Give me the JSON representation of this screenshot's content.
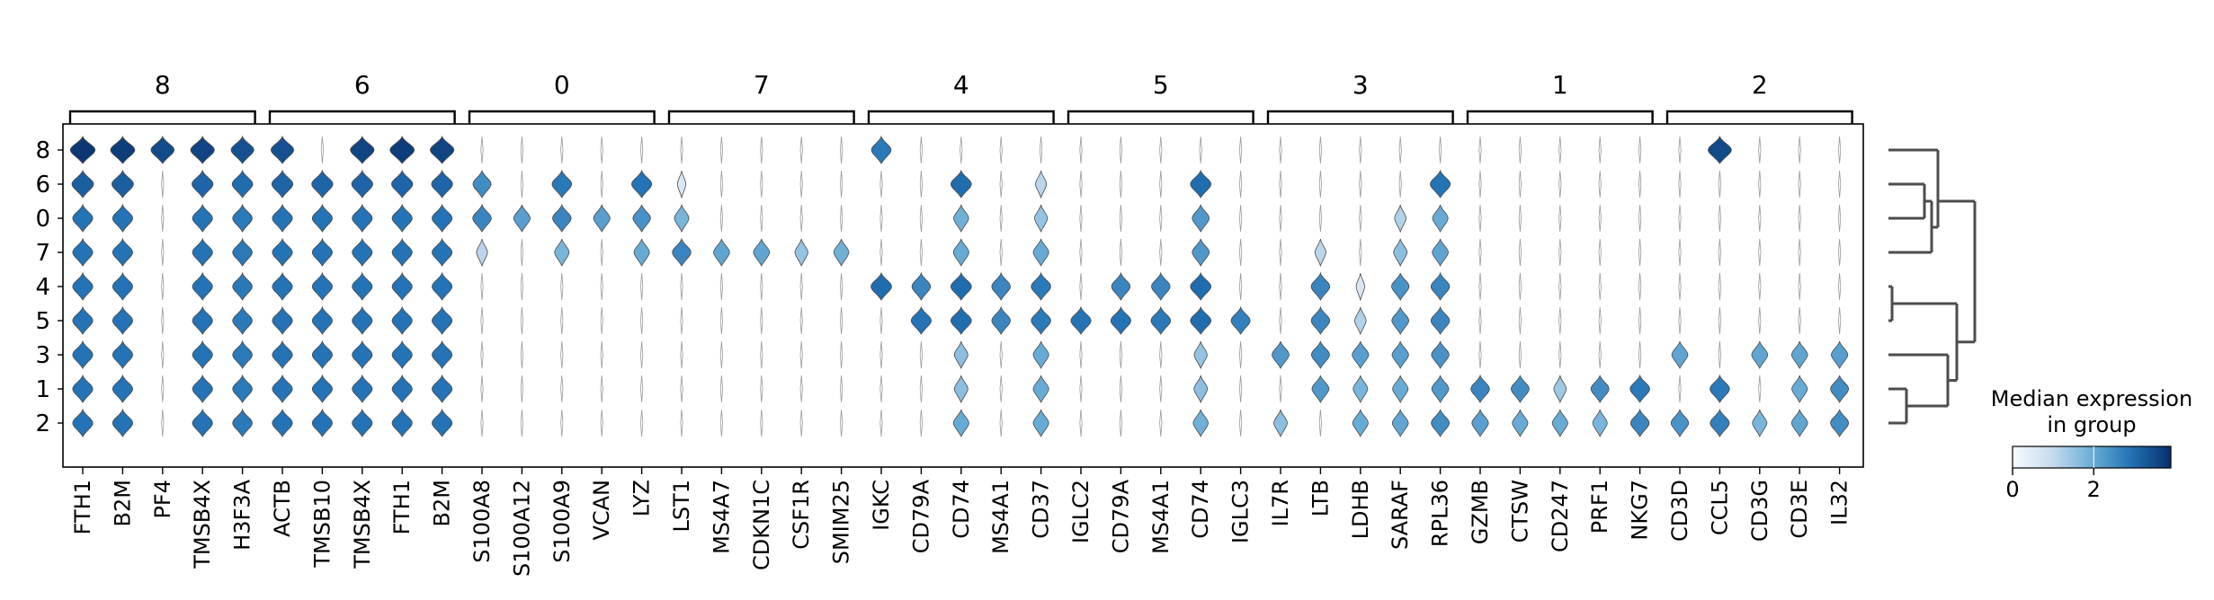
{
  "chart_data": {
    "type": "stacked-violin",
    "title": "",
    "xlabel": "",
    "ylabel": "",
    "cluster_rows": [
      "8",
      "6",
      "0",
      "7",
      "4",
      "5",
      "3",
      "1",
      "2"
    ],
    "gene_groups": [
      {
        "label": "8",
        "genes": [
          "FTH1",
          "B2M",
          "PF4",
          "TMSB4X",
          "H3F3A"
        ]
      },
      {
        "label": "6",
        "genes": [
          "ACTB",
          "TMSB10",
          "TMSB4X",
          "FTH1",
          "B2M"
        ]
      },
      {
        "label": "0",
        "genes": [
          "S100A8",
          "S100A12",
          "S100A9",
          "VCAN",
          "LYZ"
        ]
      },
      {
        "label": "7",
        "genes": [
          "LST1",
          "MS4A7",
          "CDKN1C",
          "CSF1R",
          "SMIM25"
        ]
      },
      {
        "label": "4",
        "genes": [
          "IGKC",
          "CD79A",
          "CD74",
          "MS4A1",
          "CD37"
        ]
      },
      {
        "label": "5",
        "genes": [
          "IGLC2",
          "CD79A",
          "MS4A1",
          "CD74",
          "IGLC3"
        ]
      },
      {
        "label": "3",
        "genes": [
          "IL7R",
          "LTB",
          "LDHB",
          "SARAF",
          "RPL36"
        ]
      },
      {
        "label": "1",
        "genes": [
          "GZMB",
          "CTSW",
          "CD247",
          "PRF1",
          "NKG7"
        ]
      },
      {
        "label": "2",
        "genes": [
          "CD3D",
          "CCL5",
          "CD3G",
          "CD3E",
          "IL32"
        ]
      }
    ],
    "median_expression": [
      [
        3.8,
        3.7,
        3.5,
        3.6,
        3.4,
        3.4,
        0.0,
        3.6,
        3.7,
        3.6,
        0.0,
        0.0,
        0.0,
        0.0,
        0.0,
        0.0,
        0.0,
        0.0,
        0.0,
        0.0,
        2.8,
        0.0,
        0.0,
        0.0,
        0.0,
        0.0,
        0.0,
        0.0,
        0.0,
        0.0,
        0.0,
        0.0,
        0.0,
        0.0,
        0.0,
        0.0,
        0.0,
        0.0,
        0.0,
        0.0,
        0.0,
        3.5,
        0.0,
        0.0,
        0.0
      ],
      [
        3.2,
        3.2,
        0.0,
        3.1,
        3.0,
        3.1,
        3.1,
        3.1,
        3.1,
        3.1,
        2.5,
        0.0,
        2.8,
        0.0,
        2.9,
        0.6,
        0.0,
        0.0,
        0.0,
        0.0,
        0.0,
        0.0,
        3.0,
        0.0,
        1.1,
        0.0,
        0.0,
        0.0,
        3.0,
        0.0,
        0.0,
        0.0,
        0.0,
        0.0,
        2.9,
        0.0,
        0.0,
        0.0,
        0.0,
        0.0,
        0.0,
        0.0,
        0.0,
        0.0,
        0.0
      ],
      [
        2.9,
        2.9,
        0.0,
        2.9,
        2.8,
        2.9,
        2.9,
        2.9,
        2.9,
        2.9,
        2.6,
        2.2,
        2.6,
        2.2,
        2.4,
        1.8,
        0.0,
        0.0,
        0.0,
        0.0,
        0.0,
        0.0,
        1.9,
        0.0,
        1.5,
        0.0,
        0.0,
        0.0,
        2.3,
        0.0,
        0.0,
        0.0,
        0.0,
        1.2,
        2.0,
        0.0,
        0.0,
        0.0,
        0.0,
        0.0,
        0.0,
        0.0,
        0.0,
        0.0,
        0.0
      ],
      [
        2.9,
        2.9,
        0.0,
        2.9,
        2.8,
        2.9,
        2.9,
        2.9,
        2.9,
        2.9,
        1.1,
        0.0,
        1.8,
        0.0,
        2.0,
        2.6,
        2.1,
        2.1,
        1.5,
        1.9,
        0.0,
        0.0,
        2.0,
        0.0,
        2.0,
        0.0,
        0.0,
        0.0,
        2.3,
        0.0,
        0.0,
        1.1,
        0.0,
        1.6,
        2.1,
        0.0,
        0.0,
        0.0,
        0.0,
        0.0,
        0.0,
        0.0,
        0.0,
        0.0,
        0.0
      ],
      [
        2.9,
        2.9,
        0.0,
        2.9,
        2.8,
        2.9,
        2.9,
        2.9,
        2.9,
        2.9,
        0.0,
        0.0,
        0.0,
        0.0,
        0.0,
        0.0,
        0.0,
        0.0,
        0.0,
        0.0,
        3.0,
        2.6,
        3.0,
        2.6,
        2.8,
        0.0,
        2.6,
        2.6,
        3.0,
        0.0,
        0.0,
        2.6,
        0.6,
        2.4,
        2.6,
        0.0,
        0.0,
        0.0,
        0.0,
        0.0,
        0.0,
        0.0,
        0.0,
        0.0,
        0.0
      ],
      [
        2.9,
        2.9,
        0.0,
        2.9,
        2.8,
        2.9,
        2.9,
        2.9,
        2.9,
        2.9,
        0.0,
        0.0,
        0.0,
        0.0,
        0.0,
        0.0,
        0.0,
        0.0,
        0.0,
        0.0,
        0.0,
        2.9,
        3.0,
        2.6,
        2.8,
        2.9,
        2.9,
        2.8,
        3.0,
        2.7,
        0.0,
        2.6,
        1.2,
        2.3,
        2.6,
        0.0,
        0.0,
        0.0,
        0.0,
        0.0,
        0.0,
        0.0,
        0.0,
        0.0,
        0.0
      ],
      [
        2.9,
        2.9,
        0.0,
        2.9,
        2.8,
        2.9,
        2.9,
        2.9,
        2.9,
        2.9,
        0.0,
        0.0,
        0.0,
        0.0,
        0.0,
        0.0,
        0.0,
        0.0,
        0.0,
        0.0,
        0.0,
        0.0,
        1.6,
        0.0,
        2.0,
        0.0,
        0.0,
        0.0,
        1.5,
        0.0,
        2.3,
        2.5,
        2.2,
        2.2,
        2.4,
        0.0,
        0.0,
        0.0,
        0.0,
        0.0,
        2.1,
        0.0,
        2.1,
        2.1,
        2.2
      ],
      [
        2.9,
        2.9,
        0.0,
        2.9,
        2.8,
        2.9,
        2.9,
        2.9,
        2.9,
        2.9,
        0.0,
        0.0,
        0.0,
        0.0,
        0.0,
        0.0,
        0.0,
        0.0,
        0.0,
        0.0,
        0.0,
        0.0,
        1.6,
        0.0,
        2.0,
        0.0,
        0.0,
        0.0,
        1.6,
        0.0,
        0.0,
        2.3,
        1.8,
        2.0,
        2.3,
        2.6,
        2.5,
        1.4,
        2.5,
        2.8,
        0.0,
        2.8,
        0.0,
        2.0,
        2.5
      ],
      [
        2.9,
        2.9,
        0.0,
        2.9,
        2.8,
        2.9,
        2.9,
        2.9,
        2.9,
        2.9,
        0.0,
        0.0,
        0.0,
        0.0,
        0.0,
        0.0,
        0.0,
        0.0,
        0.0,
        0.0,
        0.0,
        0.0,
        2.0,
        0.0,
        2.0,
        0.0,
        0.0,
        0.0,
        1.9,
        0.0,
        1.6,
        0.0,
        2.0,
        2.1,
        2.5,
        2.2,
        2.0,
        2.0,
        1.8,
        2.6,
        2.4,
        2.7,
        1.8,
        2.1,
        2.5
      ]
    ],
    "colorbar": {
      "title": "Median expression\nin group",
      "ticks": [
        "0",
        "2"
      ],
      "range": [
        0,
        3.9
      ]
    },
    "colormap": [
      "#f7fbff",
      "#08306b"
    ],
    "dendrogram": {
      "order": [
        "8",
        "6",
        "0",
        "7",
        "4",
        "5",
        "3",
        "1",
        "2"
      ]
    }
  }
}
